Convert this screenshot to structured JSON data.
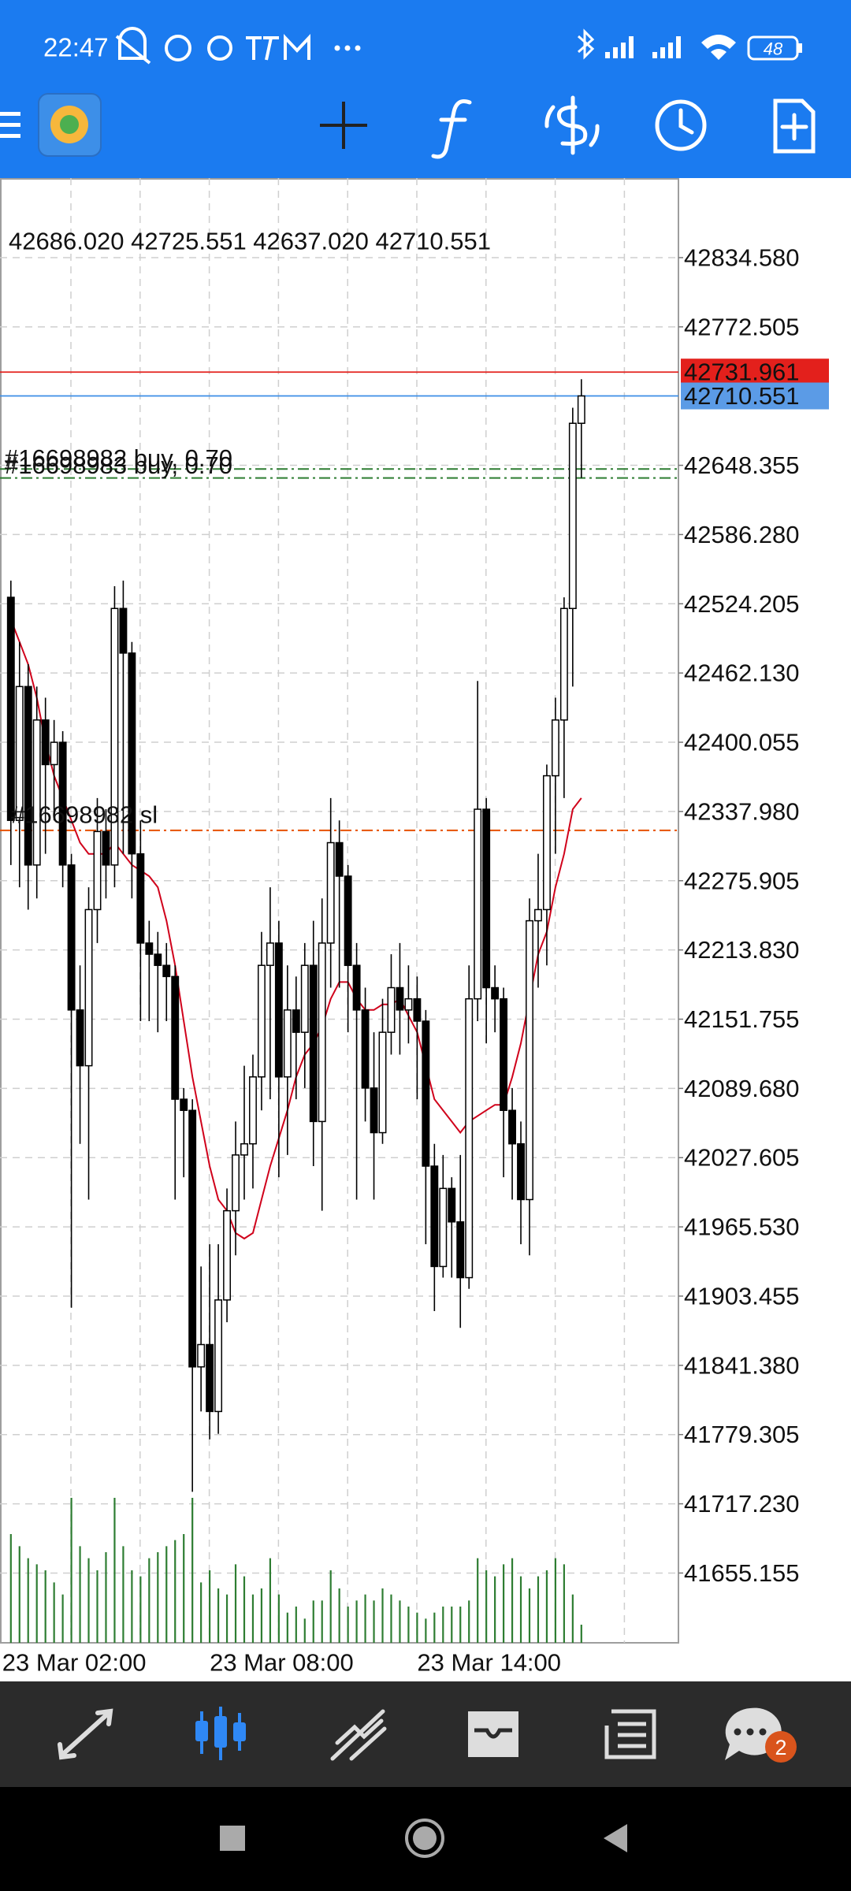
{
  "status_bar": {
    "time": "22:47",
    "battery": "48"
  },
  "chart_data": {
    "type": "candlestick",
    "header": "42686.020 42725.551 42637.020 42710.551",
    "categories": [
      "23 Mar 02:00",
      null,
      null,
      null,
      null,
      null,
      null,
      null,
      null,
      null,
      null,
      null,
      null,
      null,
      null,
      null,
      null,
      null,
      null,
      null,
      null,
      null,
      null,
      null,
      "23 Mar 08:00",
      null,
      null,
      null,
      null,
      null,
      null,
      null,
      null,
      null,
      null,
      null,
      null,
      null,
      null,
      null,
      null,
      null,
      null,
      null,
      null,
      null,
      null,
      null,
      "23 Mar 14:00",
      null,
      null,
      null,
      null,
      null,
      null,
      null,
      null,
      null,
      null,
      null,
      null,
      null,
      null,
      null,
      null,
      null,
      null
    ],
    "open": [
      42530,
      42330,
      42450,
      42290,
      42420,
      42380,
      42400,
      42290,
      42160,
      42110,
      42250,
      42320,
      42290,
      42520,
      42480,
      42300,
      42220,
      42210,
      42200,
      42190,
      42080,
      42070,
      41840,
      41860,
      41800,
      41900,
      41980,
      42030,
      42040,
      42100,
      42200,
      42220,
      42100,
      42160,
      42140,
      42200,
      42060,
      42220,
      42310,
      42280,
      42200,
      42160,
      42090,
      42050,
      42140,
      42180,
      42160,
      42170,
      42150,
      42020,
      41930,
      42000,
      41970,
      41920,
      42170,
      42340,
      42180,
      42170,
      42070,
      42040,
      41990,
      42240,
      42250,
      42370,
      42420,
      42520,
      42686.02
    ],
    "high": [
      42545,
      42490,
      42470,
      42450,
      42440,
      42420,
      42410,
      42300,
      42200,
      42270,
      42350,
      42340,
      42540,
      42545,
      42490,
      42330,
      42240,
      42230,
      42220,
      42200,
      42090,
      42080,
      41930,
      41950,
      41950,
      42000,
      42060,
      42110,
      42120,
      42230,
      42270,
      42240,
      42200,
      42190,
      42220,
      42240,
      42260,
      42350,
      42330,
      42290,
      42220,
      42180,
      42140,
      42170,
      42210,
      42220,
      42200,
      42190,
      42160,
      42040,
      42030,
      42010,
      42030,
      42200,
      42455,
      42350,
      42200,
      42180,
      42090,
      42060,
      42260,
      42300,
      42380,
      42440,
      42530,
      42700,
      42725.551
    ],
    "low": [
      42290,
      42270,
      42250,
      42260,
      42300,
      42330,
      42270,
      41893,
      42040,
      41990,
      42220,
      42260,
      42270,
      42300,
      42260,
      42150,
      42150,
      42140,
      42150,
      41990,
      42010,
      41728,
      41800,
      41775,
      41780,
      41880,
      41940,
      41990,
      42000,
      42070,
      42080,
      42010,
      42030,
      42080,
      42090,
      42020,
      41980,
      42180,
      42180,
      42140,
      41990,
      42060,
      41990,
      42040,
      42120,
      42120,
      42130,
      42080,
      41950,
      41890,
      41920,
      41920,
      41875,
      41910,
      42150,
      42130,
      42140,
      42010,
      41990,
      41950,
      41940,
      42180,
      42200,
      42300,
      42350,
      42450,
      42637.02
    ],
    "close": [
      42330,
      42450,
      42290,
      42420,
      42380,
      42400,
      42290,
      42160,
      42110,
      42250,
      42320,
      42290,
      42520,
      42480,
      42300,
      42220,
      42210,
      42200,
      42190,
      42080,
      42070,
      41840,
      41860,
      41800,
      41900,
      41980,
      42030,
      42040,
      42100,
      42200,
      42220,
      42100,
      42160,
      42140,
      42200,
      42060,
      42220,
      42310,
      42280,
      42200,
      42160,
      42090,
      42050,
      42140,
      42180,
      42160,
      42170,
      42150,
      42020,
      41930,
      42000,
      41970,
      41920,
      42170,
      42340,
      42180,
      42170,
      42070,
      42040,
      41990,
      42240,
      42250,
      42370,
      42420,
      42520,
      42686.02,
      42710.551
    ],
    "volumes": [
      90,
      80,
      70,
      65,
      60,
      50,
      40,
      120,
      80,
      70,
      60,
      75,
      120,
      80,
      60,
      55,
      70,
      75,
      80,
      85,
      90,
      120,
      50,
      60,
      45,
      40,
      65,
      55,
      40,
      45,
      70,
      40,
      25,
      30,
      20,
      35,
      35,
      60,
      45,
      30,
      35,
      40,
      35,
      45,
      40,
      35,
      30,
      25,
      20,
      25,
      30,
      30,
      30,
      35,
      70,
      60,
      55,
      65,
      70,
      55,
      45,
      55,
      60,
      70,
      65,
      40,
      15
    ],
    "ma": [
      42510,
      42490,
      42470,
      42440,
      42400,
      42370,
      42350,
      42330,
      42310,
      42300,
      42300,
      42300,
      42310,
      42300,
      42290,
      42285,
      42280,
      42270,
      42240,
      42200,
      42150,
      42100,
      42060,
      42020,
      41990,
      41980,
      41960,
      41955,
      41960,
      41990,
      42020,
      42045,
      42070,
      42100,
      42120,
      42130,
      42145,
      42170,
      42185,
      42185,
      42170,
      42160,
      42160,
      42165,
      42165,
      42170,
      42155,
      42140,
      42110,
      42080,
      42070,
      42060,
      42050,
      42060,
      42065,
      42070,
      42075,
      42075,
      42100,
      42130,
      42170,
      42210,
      42230,
      42270,
      42300,
      42340,
      42350
    ],
    "ma_color": "#d0021b",
    "volume_color": "#2e7d32",
    "ylim": [
      41592.6,
      42905.9
    ],
    "yticks": [
      {
        "value": 42834.58,
        "label": "42834.580"
      },
      42772.505,
      42648.355,
      {
        "value": 42586.28,
        "label": "42586.280"
      },
      42524.205,
      {
        "value": 42462.13,
        "label": "42462.130"
      },
      42400.055,
      {
        "value": 42337.98,
        "label": "42337.980"
      },
      42275.905,
      {
        "value": 42213.83,
        "label": "42213.830"
      },
      42151.755,
      {
        "value": 42089.68,
        "label": "42089.680"
      },
      42027.605,
      {
        "value": 41965.53,
        "label": "41965.530"
      },
      41903.455,
      {
        "value": 41841.38,
        "label": "41841.380"
      },
      41779.305,
      {
        "value": 41717.23,
        "label": "41717.230"
      },
      41655.155
    ],
    "grid": true,
    "ask": 42731.961,
    "bid": 42710.551,
    "orders": [
      {
        "label": "#16698982 buy, 0.70",
        "price": 42645
      },
      {
        "label": "#16698983 buy, 0.70",
        "price": 42637
      }
    ],
    "stop_loss": {
      "label": "#16698982 sl",
      "price": 42321
    }
  },
  "bottom_nav": {
    "chat_badge": "2"
  }
}
